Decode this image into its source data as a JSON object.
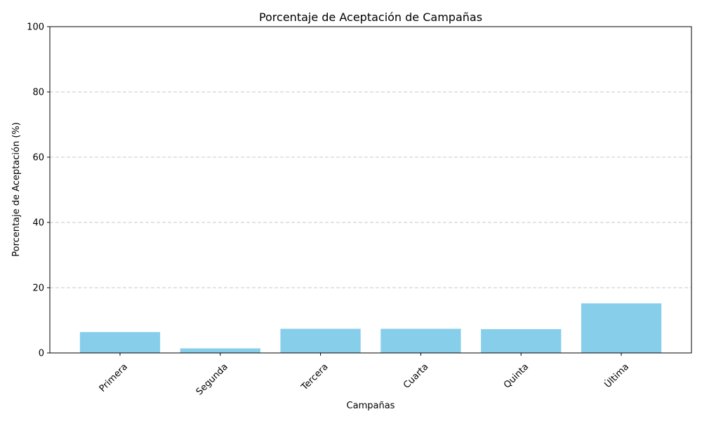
{
  "chart_data": {
    "type": "bar",
    "title": "Porcentaje de Aceptación de Campañas",
    "xlabel": "Campañas",
    "ylabel": "Porcentaje de Aceptación (%)",
    "categories": [
      "Primera",
      "Segunda",
      "Tercera",
      "Cuarta",
      "Quinta",
      "Última"
    ],
    "values": [
      6.4,
      1.4,
      7.4,
      7.4,
      7.3,
      15.2
    ],
    "ylim": [
      0,
      100
    ],
    "yticks": [
      0,
      20,
      40,
      60,
      80,
      100
    ],
    "ytick_labels": [
      "0",
      "20",
      "40",
      "60",
      "80",
      "100"
    ],
    "grid": "y-dashed",
    "legend": "none",
    "colors": {
      "bar": "#87ceeb",
      "grid": "#c8c8c8",
      "axis": "#000000"
    }
  }
}
